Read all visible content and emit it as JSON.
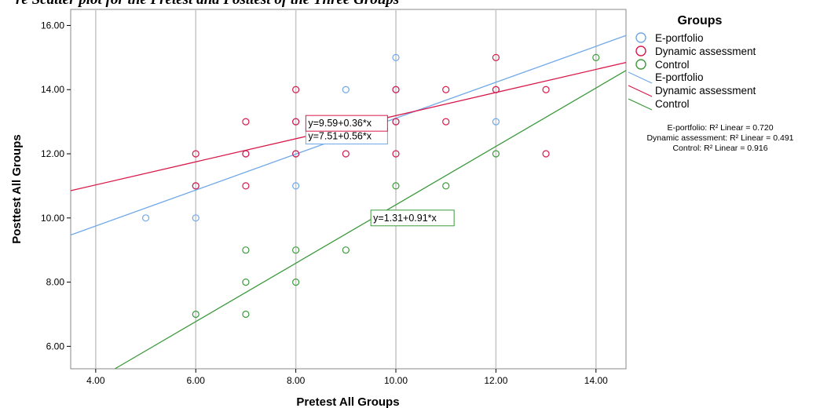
{
  "banner_text": "re Scatter plot for the Pretest and Posttest of the Three Groups",
  "chart_data": {
    "type": "scatter",
    "xlabel": "Pretest All Groups",
    "ylabel": "Posttest All Groups",
    "xlim": [
      3.5,
      14.6
    ],
    "ylim": [
      5.3,
      16.5
    ],
    "xticks": [
      "4.00",
      "6.00",
      "8.00",
      "10.00",
      "12.00",
      "14.00"
    ],
    "yticks": [
      "6.00",
      "8.00",
      "10.00",
      "12.00",
      "14.00",
      "16.00"
    ],
    "grid_vertical": true,
    "legend_placement": "right",
    "legend_title": "Groups",
    "series": [
      {
        "name": "E-portfolio",
        "color": "#6fa8e8",
        "points": [
          [
            5,
            10
          ],
          [
            6,
            10
          ],
          [
            6,
            11
          ],
          [
            7,
            12
          ],
          [
            8,
            11
          ],
          [
            8,
            12
          ],
          [
            8,
            13
          ],
          [
            9,
            14
          ],
          [
            10,
            15
          ],
          [
            10,
            14
          ],
          [
            10,
            13
          ],
          [
            12,
            14
          ],
          [
            12,
            13
          ]
        ],
        "fit": {
          "intercept": 7.51,
          "slope": 0.56
        },
        "equation_label": "y=7.51+0.56*x",
        "r2_label": "E-portfolio: R² Linear = 0.720"
      },
      {
        "name": "Dynamic assessment",
        "color": "#d9184a",
        "points": [
          [
            6,
            12
          ],
          [
            6,
            11
          ],
          [
            7,
            13
          ],
          [
            7,
            12
          ],
          [
            7,
            11
          ],
          [
            8,
            14
          ],
          [
            8,
            13
          ],
          [
            8,
            12
          ],
          [
            9,
            12
          ],
          [
            10,
            14
          ],
          [
            10,
            13
          ],
          [
            10,
            12
          ],
          [
            11,
            14
          ],
          [
            11,
            13
          ],
          [
            12,
            15
          ],
          [
            12,
            14
          ],
          [
            13,
            14
          ],
          [
            13,
            12
          ]
        ],
        "fit": {
          "intercept": 9.59,
          "slope": 0.36
        },
        "equation_label": "y=9.59+0.36*x",
        "r2_label": "Dynamic assessment: R² Linear = 0.491"
      },
      {
        "name": "Control",
        "color": "#3c9a3c",
        "points": [
          [
            6,
            7
          ],
          [
            7,
            9
          ],
          [
            7,
            8
          ],
          [
            7,
            7
          ],
          [
            8,
            9
          ],
          [
            8,
            8
          ],
          [
            9,
            9
          ],
          [
            10,
            11
          ],
          [
            11,
            11
          ],
          [
            12,
            12
          ],
          [
            14,
            15
          ]
        ],
        "fit": {
          "intercept": 1.31,
          "slope": 0.91
        },
        "equation_label": "y=1.31+0.91*x",
        "r2_label": "Control: R² Linear = 0.916"
      }
    ]
  }
}
